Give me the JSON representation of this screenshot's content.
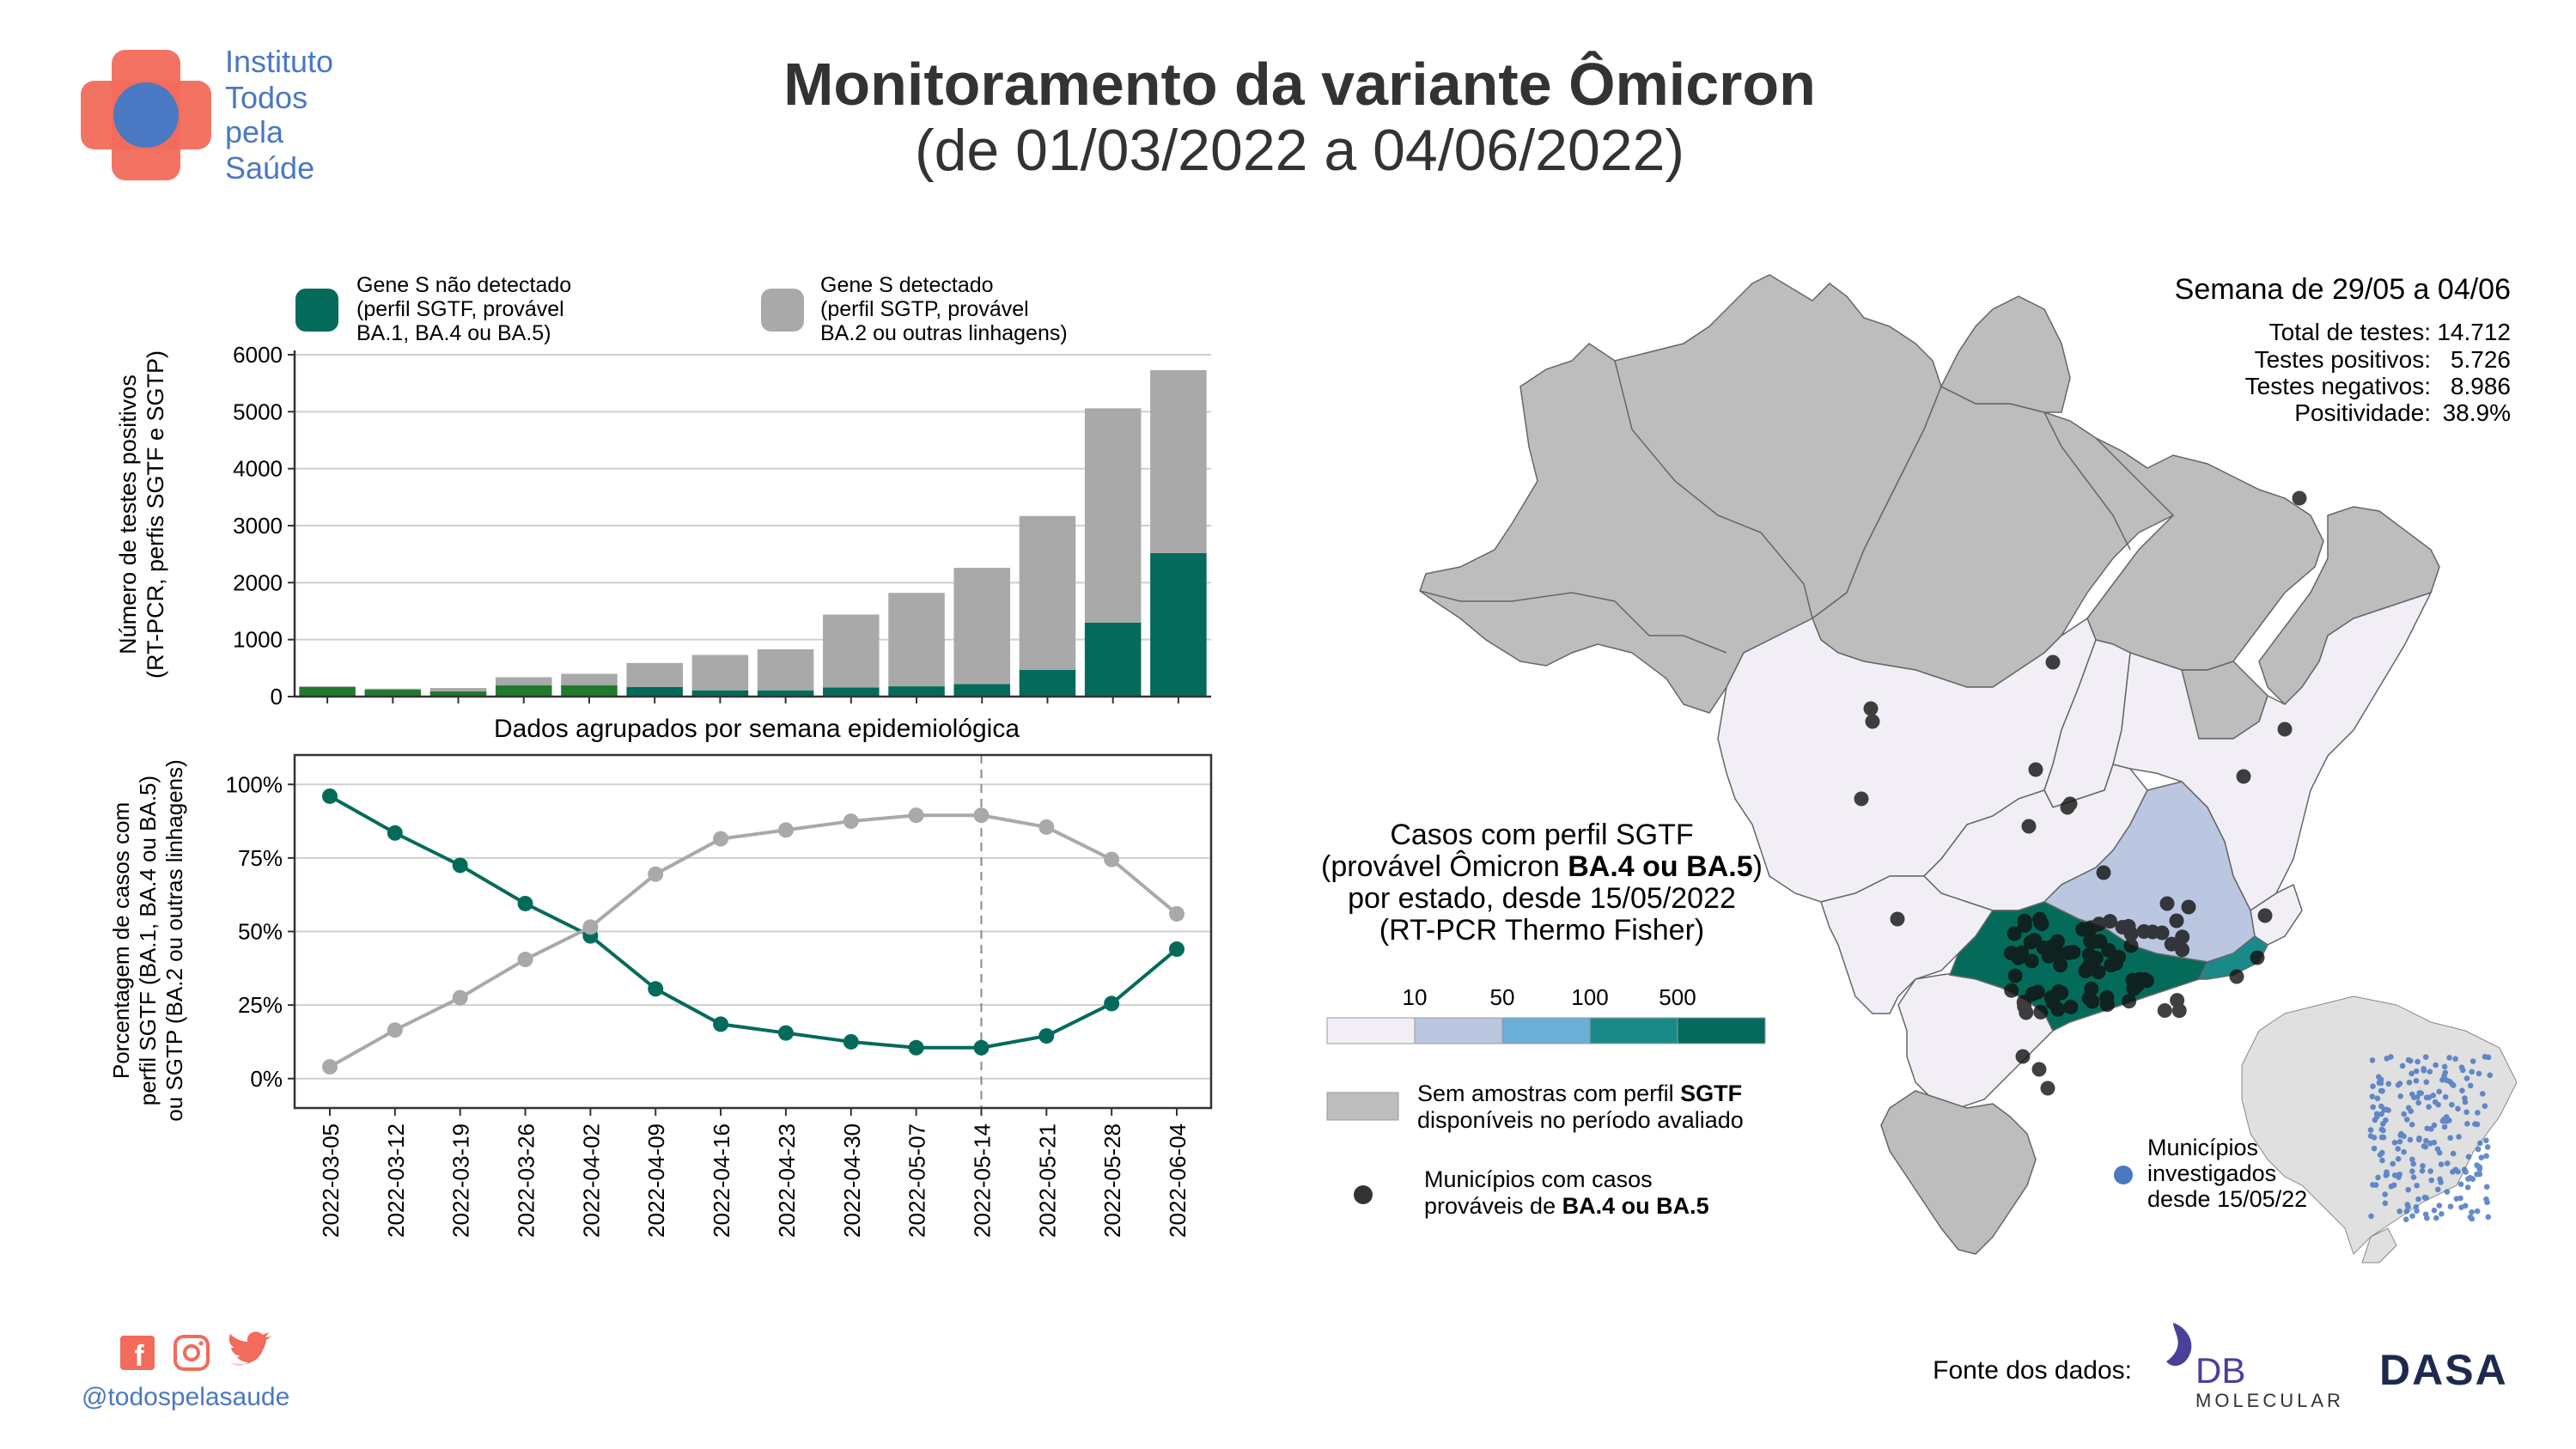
{
  "header": {
    "logo_lines": [
      "Instituto",
      "Todos",
      "pela",
      "Saúde"
    ],
    "title": "Monitoramento da variante Ômicron",
    "subtitle": "(de 01/03/2022 a 04/06/2022)"
  },
  "colors": {
    "sgtf": "#046B5A",
    "sgtf_early": "#1F7A2E",
    "sgtp": "#A9A9A9",
    "state_gray": "#BDBDBD",
    "lvl_lt10": "#F2EEF6",
    "lvl_10_50": "#BBC7E0",
    "lvl_50_100": "#6BAED6",
    "lvl_100_500": "#1A8A89",
    "lvl_gt500": "#046B5A",
    "logo_red": "#F26B5B",
    "logo_blue": "#4A78C2"
  },
  "legend_top": {
    "sgtf_label": [
      "Gene S não detectado",
      "(perfil SGTF, provável",
      "BA.1, BA.4 ou BA.5)"
    ],
    "sgtp_label": [
      "Gene S detectado",
      "(perfil SGTP, provável",
      "BA.2 ou outras linhagens)"
    ]
  },
  "chart_data": [
    {
      "type": "bar",
      "stacked": true,
      "ylabel": [
        "Número de testes positivos",
        "(RT-PCR, perfis SGTF e SGTP)"
      ],
      "xlabel": "Dados agrupados por semana epidemiológica",
      "ylim": [
        0,
        6000
      ],
      "yticks": [
        0,
        1000,
        2000,
        3000,
        4000,
        5000,
        6000
      ],
      "categories": [
        "2022-03-05",
        "2022-03-12",
        "2022-03-19",
        "2022-03-26",
        "2022-04-02",
        "2022-04-09",
        "2022-04-16",
        "2022-04-23",
        "2022-04-30",
        "2022-05-07",
        "2022-05-14",
        "2022-05-21",
        "2022-05-28",
        "2022-06-04"
      ],
      "series": [
        {
          "name": "Gene S não detectado",
          "values": [
            170,
            120,
            90,
            200,
            200,
            170,
            110,
            110,
            160,
            180,
            220,
            470,
            1300,
            2520
          ]
        },
        {
          "name": "Gene S detectado",
          "values": [
            10,
            20,
            60,
            140,
            200,
            420,
            620,
            720,
            1280,
            1640,
            2040,
            2700,
            3760,
            3210
          ]
        }
      ]
    },
    {
      "type": "line",
      "ylabel": [
        "Porcentagem de casos com",
        "perfil SGTF (BA.1, BA.4 ou BA.5)",
        "ou SGTP (BA.2 ou outras linhagens)"
      ],
      "ylim": [
        -0.1,
        1.1
      ],
      "yticks": [
        "0%",
        "25%",
        "50%",
        "75%",
        "100%"
      ],
      "x": [
        "2022-03-05",
        "2022-03-12",
        "2022-03-19",
        "2022-03-26",
        "2022-04-02",
        "2022-04-09",
        "2022-04-16",
        "2022-04-23",
        "2022-04-30",
        "2022-05-07",
        "2022-05-14",
        "2022-05-21",
        "2022-05-28",
        "2022-06-04"
      ],
      "series": [
        {
          "name": "SGTF",
          "values": [
            0.96,
            0.835,
            0.725,
            0.595,
            0.485,
            0.305,
            0.185,
            0.155,
            0.125,
            0.105,
            0.105,
            0.145,
            0.255,
            0.44
          ]
        },
        {
          "name": "SGTP",
          "values": [
            0.04,
            0.165,
            0.275,
            0.405,
            0.515,
            0.695,
            0.815,
            0.845,
            0.875,
            0.895,
            0.895,
            0.855,
            0.745,
            0.56
          ]
        }
      ],
      "vline_at": "2022-05-14"
    }
  ],
  "map": {
    "week_title": "Semana de 29/05 a 04/06",
    "stats": [
      {
        "label": "Total de testes:",
        "value": "14.712"
      },
      {
        "label": "Testes positivos:",
        "value": "5.726"
      },
      {
        "label": "Testes negativos:",
        "value": "8.986"
      },
      {
        "label": "Positividade:",
        "value": "38.9%"
      }
    ],
    "legend_title": [
      "Casos com perfil SGTF",
      "(provável Ômicron ",
      "BA.4 ou BA.5",
      ")",
      "por estado, desde 15/05/2022",
      "(RT-PCR Thermo Fisher)"
    ],
    "scale_ticks": [
      "10",
      "50",
      "100",
      "500"
    ],
    "no_samples_label": [
      "Sem amostras com perfil ",
      "SGTF",
      "disponíveis no período avaliado"
    ],
    "municipios_label": [
      "Municípios com casos",
      "prováveis de ",
      "BA.4 ou BA.5"
    ],
    "inset_label": [
      "Municípios",
      "investigados",
      "desde 15/05/22"
    ]
  },
  "footer": {
    "handle": "@todospelasaude",
    "source_label": "Fonte dos dados:",
    "db_logo": "DB",
    "db_sub": "MOLECULAR",
    "dasa_logo": "DASA"
  }
}
